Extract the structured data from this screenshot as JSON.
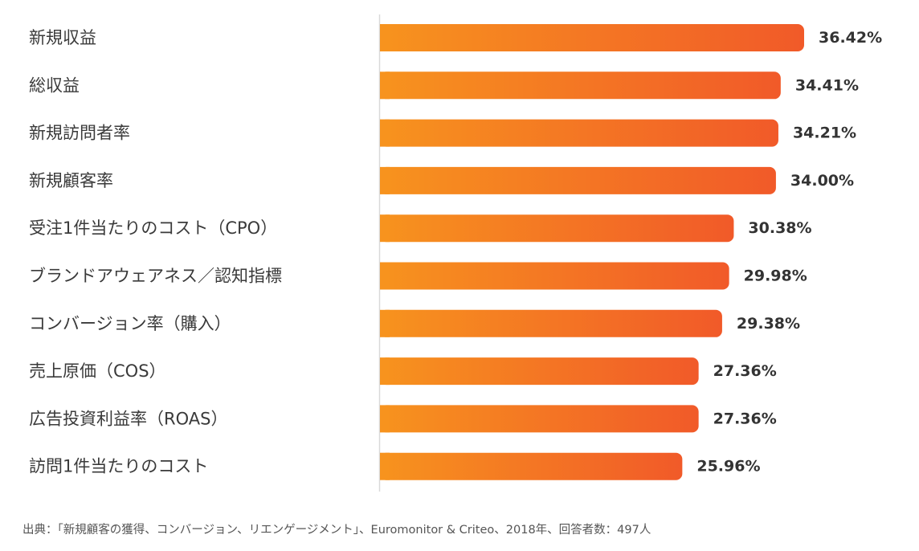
{
  "chart_data": {
    "type": "bar",
    "orientation": "horizontal",
    "categories": [
      "新規収益",
      "総収益",
      "新規訪問者率",
      "新規顧客率",
      "受注1件当たりのコスト（CPO）",
      "ブランドアウェアネス／認知指標",
      "コンバージョン率（購入）",
      "売上原価（COS）",
      "広告投資利益率（ROAS）",
      "訪問1件当たりのコスト"
    ],
    "values": [
      36.42,
      34.41,
      34.21,
      34.0,
      30.38,
      29.98,
      29.38,
      27.36,
      27.36,
      25.96
    ],
    "value_labels": [
      "36.42%",
      "34.41%",
      "34.21%",
      "34.00%",
      "30.38%",
      "29.98%",
      "29.38%",
      "27.36%",
      "27.36%",
      "25.96%"
    ],
    "unit": "%",
    "grid": false,
    "legend": "none",
    "colors": {
      "bar_start": "#f7931e",
      "bar_end": "#f15a29",
      "axis": "#d9d9d9"
    }
  },
  "source": "出典：「新規顧客の獲得、コンバージョン、リエンゲージメント」、Euromonitor & Criteo、2018年、回答者数：497人"
}
